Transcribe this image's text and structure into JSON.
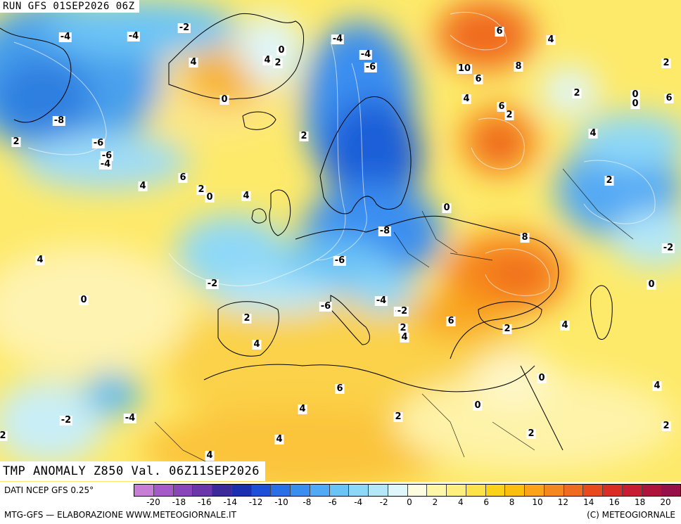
{
  "header": {
    "run": "RUN GFS 01SEP2026 06Z"
  },
  "title": "TMP ANOMALY Z850 Val. 06Z11SEP2026",
  "footer": {
    "source": "DATI NCEP GFS 0.25°",
    "credit": "MTG-GFS — ELABORAZIONE WWW.METEOGIORNALE.IT",
    "copyright": "(C) METEOGIORNALE"
  },
  "legend": {
    "colors": [
      "#c77fd6",
      "#a45bc8",
      "#8a46b8",
      "#6a36a8",
      "#3c2a98",
      "#1b2fb0",
      "#1f4fd8",
      "#2a6ee8",
      "#3b8ef0",
      "#52a9f4",
      "#6cc4f6",
      "#8ed8f7",
      "#b4e8f8",
      "#dff6fb",
      "#fefde0",
      "#fef7a8",
      "#fef07a",
      "#fde24a",
      "#fbd21a",
      "#fbbf0f",
      "#f9a41a",
      "#f6871f",
      "#f06a1f",
      "#e8491f",
      "#d92c26",
      "#c81c32",
      "#b0143c",
      "#96104a"
    ],
    "ticks": [
      "-20",
      "-18",
      "-16",
      "-14",
      "-12",
      "-10",
      "-8",
      "-6",
      "-4",
      "-2",
      "0",
      "2",
      "4",
      "6",
      "8",
      "10",
      "12",
      "14",
      "16",
      "18",
      "20"
    ]
  },
  "isolines": [
    "-4",
    "-4",
    "-4",
    "-4",
    "-6",
    "-8",
    "-6",
    "-4",
    "-2",
    "0",
    "2",
    "4",
    "2",
    "4",
    "6",
    "4",
    "0",
    "2",
    "4",
    "2",
    "4",
    "0",
    "-2",
    "-4",
    "-6",
    "-8",
    "-6",
    "-6",
    "6",
    "4",
    "10",
    "8",
    "6",
    "2",
    "6",
    "8",
    "4",
    "0",
    "6",
    "4",
    "2",
    "-2",
    "-4",
    "-2",
    "6",
    "8",
    "0",
    "0",
    "-4",
    "-2",
    "2",
    "4",
    "4",
    "2",
    "6",
    "0",
    "4",
    "2",
    "4",
    "2",
    "0",
    "2",
    "4",
    "2",
    "-2",
    "0",
    "2",
    "4",
    "2",
    "0",
    "2",
    "4"
  ]
}
